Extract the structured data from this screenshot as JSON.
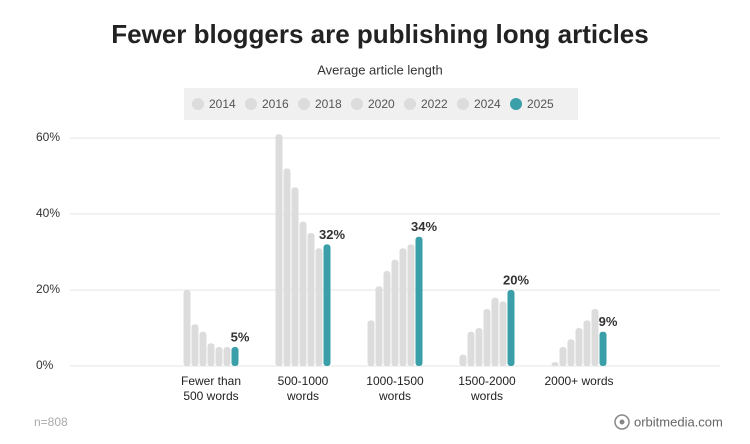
{
  "chart_data": {
    "type": "bar",
    "title": "Fewer bloggers are publishing long articles",
    "subtitle": "Average article length",
    "categories": [
      "Fewer than 500 words",
      "500-1000 words",
      "1000-1500 words",
      "1500-2000 words",
      "2000+ words"
    ],
    "series": [
      {
        "name": "2014",
        "color": "#dcdcdc",
        "values": [
          20,
          61,
          12,
          3,
          1
        ]
      },
      {
        "name": "2016",
        "color": "#dcdcdc",
        "values": [
          11,
          52,
          21,
          9,
          5
        ]
      },
      {
        "name": "2018",
        "color": "#dcdcdc",
        "values": [
          9,
          47,
          25,
          10,
          7
        ]
      },
      {
        "name": "2020",
        "color": "#dcdcdc",
        "values": [
          6,
          38,
          28,
          15,
          10
        ]
      },
      {
        "name": "2022",
        "color": "#dcdcdc",
        "values": [
          5,
          35,
          31,
          18,
          12
        ]
      },
      {
        "name": "2024",
        "color": "#dcdcdc",
        "values": [
          5,
          31,
          32,
          17,
          15
        ]
      },
      {
        "name": "2025",
        "color": "#3a9fa8",
        "values": [
          5,
          32,
          34,
          20,
          9
        ],
        "value_labels": [
          "5%",
          "32%",
          "34%",
          "20%",
          "9%"
        ]
      }
    ],
    "ylim": [
      0,
      65
    ],
    "yticks": [
      {
        "value": 0,
        "label": "0%"
      },
      {
        "value": 20,
        "label": "20%"
      },
      {
        "value": 40,
        "label": "40%"
      },
      {
        "value": 60,
        "label": "60%"
      }
    ],
    "grid": true,
    "legend": "top",
    "sample_note": "n=808",
    "source": "orbitmedia.com"
  }
}
